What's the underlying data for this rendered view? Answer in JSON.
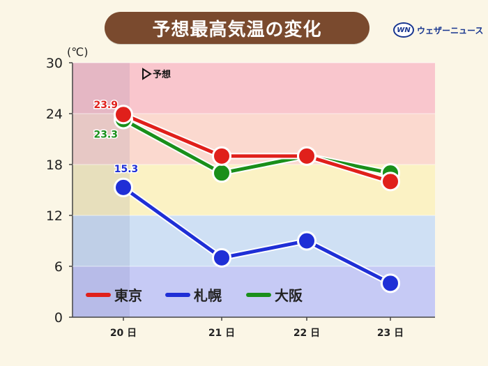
{
  "header": {
    "title": "予想最高気温の変化",
    "logo_mark": "WN",
    "logo_text": "ウェザーニュース"
  },
  "chart_data": {
    "type": "line",
    "title": "予想最高気温の変化",
    "unit_label": "(℃)",
    "forecast_label": "予想",
    "categories": [
      "20 日",
      "21 日",
      "22 日",
      "23 日"
    ],
    "ylim": [
      0,
      30
    ],
    "yticks": [
      0,
      6,
      12,
      18,
      24,
      30
    ],
    "ytick_labels": [
      "0",
      "6",
      "12",
      "18",
      "24",
      "30"
    ],
    "series": [
      {
        "name": "東京",
        "color": "#e0201b",
        "values": [
          23.9,
          19.0,
          19.0,
          16.0
        ],
        "labels": [
          "23.9",
          null,
          null,
          null
        ]
      },
      {
        "name": "札幌",
        "color": "#1f2fd6",
        "values": [
          15.3,
          7.0,
          9.0,
          4.0
        ],
        "labels": [
          "15.3",
          null,
          null,
          null
        ]
      },
      {
        "name": "大阪",
        "color": "#1a8f1a",
        "values": [
          23.3,
          17.0,
          19.0,
          17.0
        ],
        "labels": [
          "23.3",
          null,
          null,
          null
        ]
      }
    ],
    "bands": [
      {
        "from": 24,
        "to": 30,
        "color": "#f9c6cd"
      },
      {
        "from": 18,
        "to": 24,
        "color": "#fbd9cf"
      },
      {
        "from": 12,
        "to": 18,
        "color": "#fbf2c4"
      },
      {
        "from": 6,
        "to": 12,
        "color": "#cfe0f4"
      },
      {
        "from": 0,
        "to": 6,
        "color": "#c6caf5"
      }
    ]
  }
}
